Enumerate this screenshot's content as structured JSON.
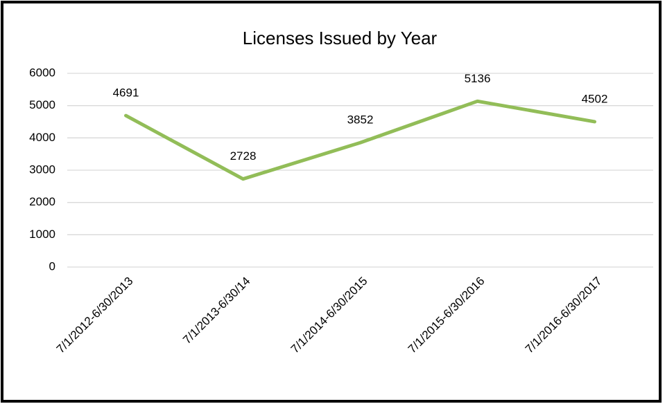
{
  "chart_data": {
    "type": "line",
    "title": "Licenses Issued by Year",
    "categories": [
      "7/1/2012-6/30/2013",
      "7/1/2013-6/30/14",
      "7/1/2014-6/30/2015",
      "7/1/2015-6/30/2016",
      "7/1/2016-6/30/2017"
    ],
    "values": [
      4691,
      2728,
      3852,
      5136,
      4502
    ],
    "color": "#92bd58",
    "ylim": [
      0,
      6000
    ],
    "yticks": [
      0,
      1000,
      2000,
      3000,
      4000,
      5000,
      6000
    ],
    "grid": true
  }
}
